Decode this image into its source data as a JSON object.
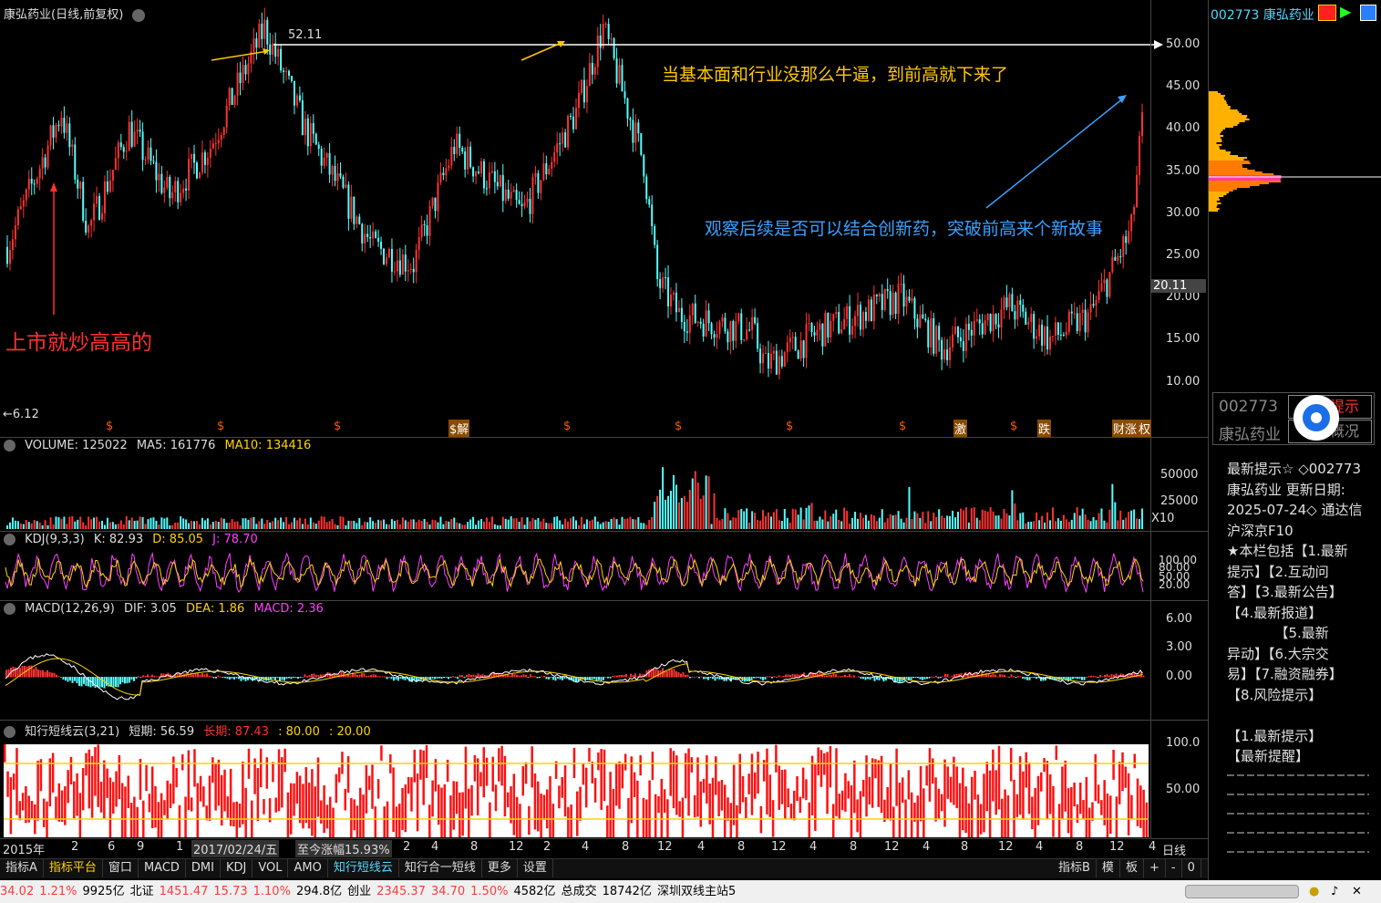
{
  "main": {
    "title": "康弘药业(日线,前复权)",
    "price_labels": [
      "50.00",
      "45.00",
      "40.00",
      "35.00",
      "30.00",
      "25.00",
      "20.00",
      "15.00",
      "10.00"
    ],
    "current_price": "20.11",
    "high_label": "52.11",
    "low_label": "←6.12",
    "annotation_1": "当基本面和行业没那么牛逼，到前高就下来了",
    "annotation_2": "观察后续是否可以结合创新药，突破前高来个新故事",
    "annotation_3": "上市就炒高高的",
    "event_markers": [
      "$",
      "$",
      "$",
      "$解",
      "$",
      "$",
      "$",
      "$",
      "激",
      "$",
      "跌",
      "财涨",
      "权"
    ]
  },
  "volume": {
    "header": [
      "VOLUME: 125022",
      "MA5: 161776",
      "MA10: 134416"
    ],
    "axis": [
      "50000",
      "25000",
      "X10"
    ]
  },
  "kdj": {
    "header": [
      "KDJ(9,3,3)",
      "K: 82.93",
      "D: 85.05",
      "J: 78.70"
    ],
    "axis": [
      "100.00",
      "80.00",
      "50.00",
      "20.00"
    ]
  },
  "macd": {
    "header": [
      "MACD(12,26,9)",
      "DIF: 3.05",
      "DEA: 1.86",
      "MACD: 2.36"
    ],
    "axis": [
      "6.00",
      "3.00",
      "0.00"
    ]
  },
  "cloud": {
    "header": [
      "知行短线云(3,21)",
      "短期: 56.59",
      "长期: 87.43",
      ": 80.00",
      ": 20.00"
    ],
    "axis": [
      "100.0",
      "50.00"
    ]
  },
  "time_axis": {
    "labels": [
      "2015年",
      "2",
      "6",
      "9",
      "1",
      "2017/02/24/五",
      "至今涨幅15.93%",
      "2",
      "4",
      "8",
      "12",
      "2",
      "4",
      "8",
      "12",
      "4",
      "8",
      "12",
      "4",
      "8",
      "12",
      "4",
      "8",
      "12",
      "4",
      "8",
      "12",
      "4"
    ],
    "period": "日线"
  },
  "tabs": [
    "指标A",
    "指标平台",
    "窗口",
    "MACD",
    "DMI",
    "KDJ",
    "VOL",
    "AMO",
    "知行短线云",
    "知行合一短线",
    "更多",
    "设置"
  ],
  "tabs_right": [
    "指标B",
    "模",
    "板",
    "+",
    "-",
    "0"
  ],
  "ticker": [
    {
      "t": "34.02",
      "c": "up"
    },
    {
      "t": "1.21%",
      "c": "up"
    },
    {
      "t": "9925亿",
      "c": ""
    },
    {
      "t": "北证",
      "c": ""
    },
    {
      "t": "1451.47",
      "c": "up"
    },
    {
      "t": "15.73",
      "c": "up"
    },
    {
      "t": "1.10%",
      "c": "up"
    },
    {
      "t": "294.8亿",
      "c": ""
    },
    {
      "t": "创业",
      "c": ""
    },
    {
      "t": "2345.37",
      "c": "up"
    },
    {
      "t": "34.70",
      "c": "up"
    },
    {
      "t": "1.50%",
      "c": "up"
    },
    {
      "t": "4582亿",
      "c": ""
    },
    {
      "t": "总成交",
      "c": ""
    },
    {
      "t": "18742亿",
      "c": ""
    },
    {
      "t": "深圳双线主站5",
      "c": ""
    }
  ],
  "side": {
    "code": "002773",
    "name": "康弘药业",
    "box_code": "002773",
    "box_name": "康弘药业",
    "box_btn1": "最新提示",
    "box_btn2": "公司概况",
    "f10_lines": [
      "最新提示☆ ◇002773",
      "康弘药业 更新日期:",
      "2025-07-24◇ 通达信",
      "沪深京F10",
      "★本栏包括【1.最新",
      "提示】【2.互动问",
      "答】【3.最新公告】",
      "【4.最新报道】",
      "　　　　【5.最新",
      "异动】【6.大宗交",
      "易】【7.融资融券】",
      "【8.风险提示】",
      "",
      "【1.最新提示】",
      "【最新提醒】"
    ]
  },
  "colors": {
    "up": "#ff3232",
    "down": "#54ffff",
    "yellow": "#ffd400",
    "magenta": "#ff40ff",
    "orange": "#ff8c00"
  }
}
